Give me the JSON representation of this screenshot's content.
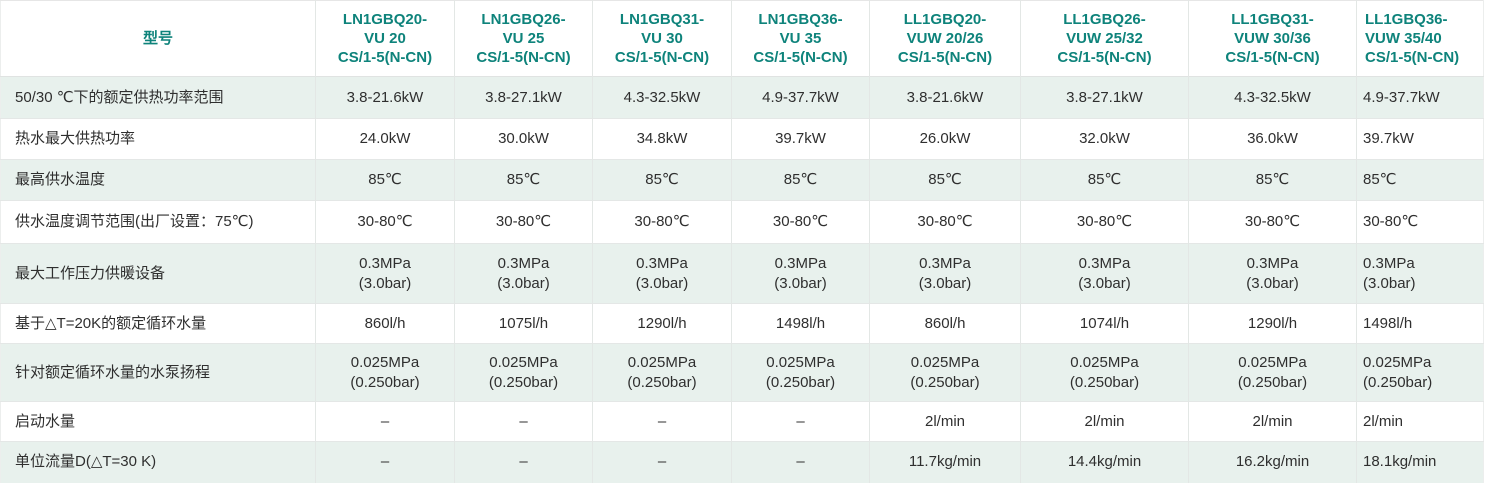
{
  "table": {
    "columns": [
      {
        "label": "型号"
      },
      {
        "label": "LN1GBQ20-\nVU 20\nCS/1-5(N-CN)"
      },
      {
        "label": "LN1GBQ26-\nVU 25\nCS/1-5(N-CN)"
      },
      {
        "label": "LN1GBQ31-\nVU 30\nCS/1-5(N-CN)"
      },
      {
        "label": "LN1GBQ36-\nVU 35\nCS/1-5(N-CN)"
      },
      {
        "label": "LL1GBQ20-\nVUW 20/26\nCS/1-5(N-CN)"
      },
      {
        "label": "LL1GBQ26-\nVUW 25/32\nCS/1-5(N-CN)"
      },
      {
        "label": "LL1GBQ31-\nVUW 30/36\nCS/1-5(N-CN)"
      },
      {
        "label": "LL1GBQ36-\nVUW 35/40\nCS/1-5(N-CN)"
      }
    ],
    "rows": [
      {
        "label": "50/30 ℃下的额定供热功率范围",
        "values": [
          "3.8-21.6kW",
          "3.8-27.1kW",
          "4.3-32.5kW",
          "4.9-37.7kW",
          "3.8-21.6kW",
          "3.8-27.1kW",
          "4.3-32.5kW",
          "4.9-37.7kW"
        ]
      },
      {
        "label": "热水最大供热功率",
        "values": [
          "24.0kW",
          "30.0kW",
          "34.8kW",
          "39.7kW",
          "26.0kW",
          "32.0kW",
          "36.0kW",
          "39.7kW"
        ]
      },
      {
        "label": "最高供水温度",
        "values": [
          "85℃",
          "85℃",
          "85℃",
          "85℃",
          "85℃",
          "85℃",
          "85℃",
          "85℃"
        ]
      },
      {
        "label": "供水温度调节范围(出厂设置：75℃)",
        "values": [
          "30-80℃",
          "30-80℃",
          "30-80℃",
          "30-80℃",
          "30-80℃",
          "30-80℃",
          "30-80℃",
          "30-80℃"
        ]
      },
      {
        "label": "最大工作压力供暖设备",
        "values": [
          "0.3MPa\n(3.0bar)",
          "0.3MPa\n(3.0bar)",
          "0.3MPa\n(3.0bar)",
          "0.3MPa\n(3.0bar)",
          "0.3MPa\n(3.0bar)",
          "0.3MPa\n(3.0bar)",
          "0.3MPa\n(3.0bar)",
          "0.3MPa\n(3.0bar)"
        ]
      },
      {
        "label": "基于△T=20K的额定循环水量",
        "values": [
          "860l/h",
          "1075l/h",
          "1290l/h",
          "1498l/h",
          "860l/h",
          "1074l/h",
          "1290l/h",
          "1498l/h"
        ]
      },
      {
        "label": "针对额定循环水量的水泵扬程",
        "values": [
          "0.025MPa\n(0.250bar)",
          "0.025MPa\n(0.250bar)",
          "0.025MPa\n(0.250bar)",
          "0.025MPa\n(0.250bar)",
          "0.025MPa\n(0.250bar)",
          "0.025MPa\n(0.250bar)",
          "0.025MPa\n(0.250bar)",
          "0.025MPa\n(0.250bar)"
        ]
      },
      {
        "label": "启动水量",
        "values": [
          "–",
          "–",
          "–",
          "–",
          "2l/min",
          "2l/min",
          "2l/min",
          "2l/min"
        ]
      },
      {
        "label": "单位流量D(△T=30 K)",
        "values": [
          "–",
          "–",
          "–",
          "–",
          "11.7kg/min",
          "14.4kg/min",
          "16.2kg/min",
          "18.1kg/min"
        ]
      }
    ]
  },
  "colors": {
    "header_text": "#0e837b",
    "stripe_background": "#e8f1ed",
    "body_text": "#2f2f2f"
  }
}
